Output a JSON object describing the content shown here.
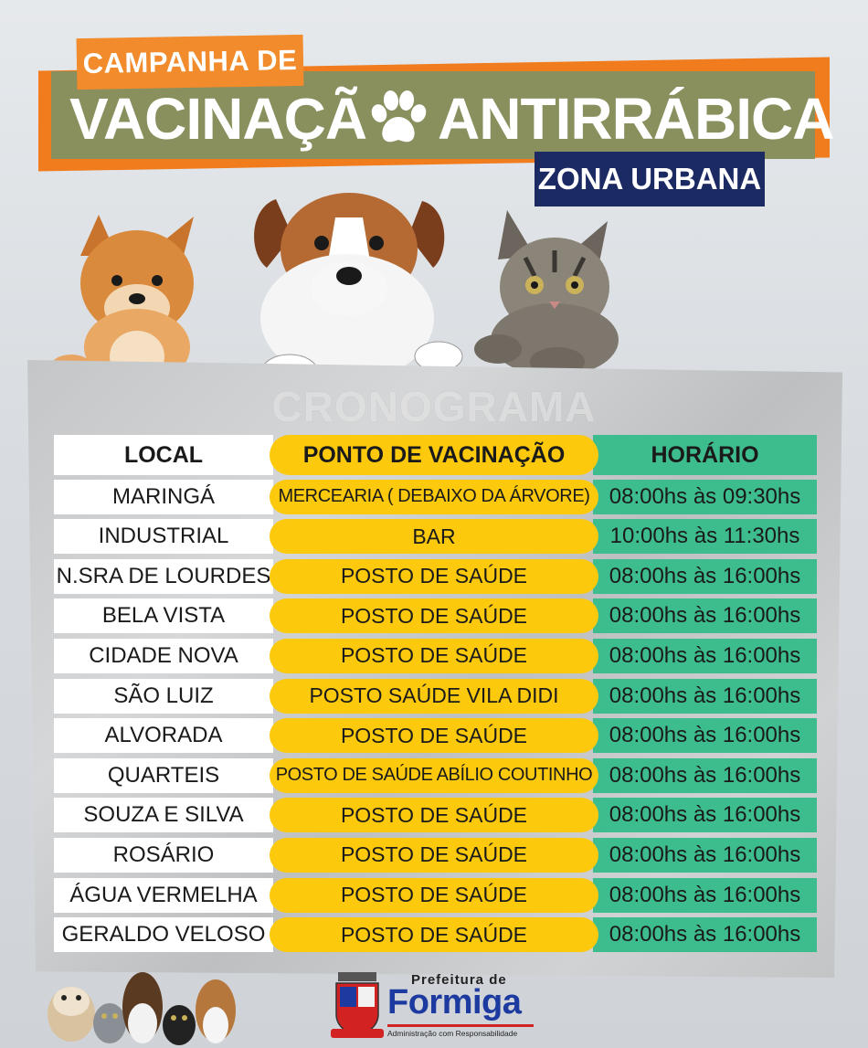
{
  "header": {
    "tag_top": "CAMPANHA DE",
    "title_left": "VACINAÇÃ",
    "title_right": "ANTIRRÁBICA",
    "tag_zone": "ZONA URBANA",
    "icon": "paw-icon"
  },
  "watermark": "CRONOGRAMA",
  "table": {
    "headers": {
      "local": "LOCAL",
      "ponto": "PONTO DE VACINAÇÃO",
      "horario": "HORÁRIO"
    },
    "rows": [
      {
        "local": "MARINGÁ",
        "ponto": "MERCEARIA ( DEBAIXO DA ÁRVORE)",
        "horario": "08:00hs às 09:30hs"
      },
      {
        "local": "INDUSTRIAL",
        "ponto": "BAR",
        "horario": "10:00hs às 11:30hs"
      },
      {
        "local": "N.SRA DE LOURDES",
        "ponto": "POSTO DE SAÚDE",
        "horario": "08:00hs às 16:00hs"
      },
      {
        "local": "BELA VISTA",
        "ponto": "POSTO DE SAÚDE",
        "horario": "08:00hs às 16:00hs"
      },
      {
        "local": "CIDADE NOVA",
        "ponto": "POSTO DE SAÚDE",
        "horario": "08:00hs às 16:00hs"
      },
      {
        "local": "SÃO LUIZ",
        "ponto": "POSTO SAÚDE VILA DIDI",
        "horario": "08:00hs às 16:00hs"
      },
      {
        "local": "ALVORADA",
        "ponto": "POSTO DE SAÚDE",
        "horario": "08:00hs às 16:00hs"
      },
      {
        "local": "QUARTEIS",
        "ponto": "POSTO DE SAÚDE ABÍLIO COUTINHO",
        "horario": "08:00hs às 16:00hs"
      },
      {
        "local": "SOUZA E SILVA",
        "ponto": "POSTO DE SAÚDE",
        "horario": "08:00hs às 16:00hs"
      },
      {
        "local": "ROSÁRIO",
        "ponto": "POSTO DE SAÚDE",
        "horario": "08:00hs às 16:00hs"
      },
      {
        "local": "ÁGUA VERMELHA",
        "ponto": "POSTO DE SAÚDE",
        "horario": "08:00hs às 16:00hs"
      },
      {
        "local": "GERALDO VELOSO",
        "ponto": "POSTO DE SAÚDE",
        "horario": "08:00hs às 16:00hs"
      }
    ]
  },
  "footer": {
    "prefeitura": "Prefeitura de",
    "city": "Formiga",
    "slogan": "Administração com Responsabilidade",
    "crest_icon": "city-crest-icon"
  },
  "colors": {
    "orange": "#f07c1e",
    "olive": "#8a8f5e",
    "navy": "#1c2a64",
    "yellow": "#fcc90d",
    "green": "#3dbd8e",
    "brand_blue": "#1c3aa0"
  }
}
